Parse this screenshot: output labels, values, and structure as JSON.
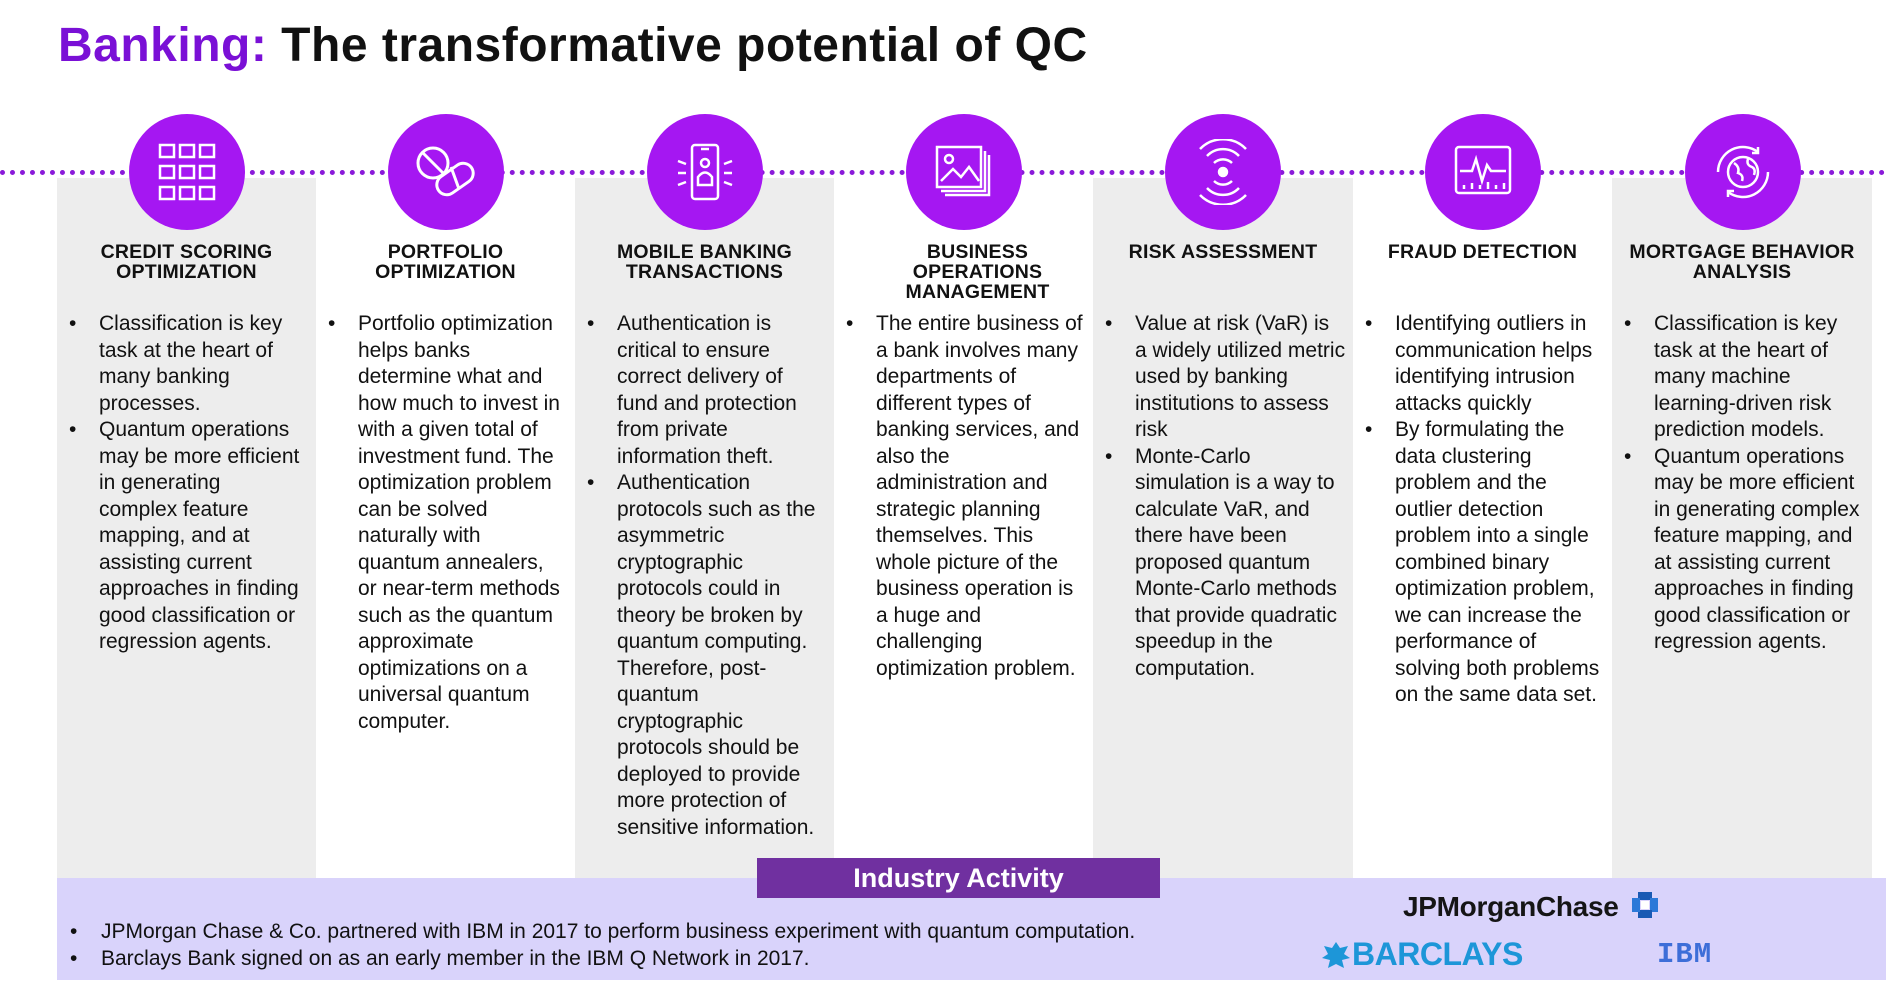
{
  "title": {
    "accent": "Banking:",
    "rest": " The transformative potential of QC"
  },
  "columns": [
    {
      "icon": "grid-icon",
      "heading": "CREDIT SCORING\nOPTIMIZATION",
      "bullets": [
        "Classification is key task at the heart of many banking processes.",
        "Quantum operations may be more efficient in generating complex feature mapping, and at assisting current approaches in finding good classification or regression agents."
      ]
    },
    {
      "icon": "pill-icon",
      "heading": "PORTFOLIO\nOPTIMIZATION",
      "bullets": [
        "Portfolio optimization helps banks determine what and how much to invest in with a given total of investment fund. The optimization problem can be solved naturally with quantum annealers, or near-term methods such as the quantum approximate optimizations on a universal quantum computer."
      ]
    },
    {
      "icon": "mobile-device-icon",
      "heading": "MOBILE BANKING\nTRANSACTIONS",
      "bullets": [
        "Authentication is critical to ensure correct delivery of fund and protection from private information theft.",
        "Authentication protocols such as the asymmetric cryptographic protocols could in theory be broken by quantum computing. Therefore, post-quantum cryptographic protocols should be deployed to provide more protection of sensitive information."
      ]
    },
    {
      "icon": "image-stack-icon",
      "heading": "BUSINESS\nOPERATIONS\nMANAGEMENT",
      "bullets": [
        "The entire business of a bank involves many departments of different types of banking services, and also the administration and strategic planning themselves. This whole picture of the business operation is a huge and challenging optimization problem."
      ]
    },
    {
      "icon": "signal-waves-icon",
      "heading": "RISK ASSESSMENT",
      "bullets": [
        "Value at risk (VaR) is a widely utilized metric used by banking institutions to assess risk",
        "Monte-Carlo simulation is a way to calculate VaR, and there have been proposed quantum Monte-Carlo methods that provide quadratic speedup in the computation."
      ]
    },
    {
      "icon": "monitor-pulse-icon",
      "heading": "FRAUD DETECTION",
      "bullets": [
        "Identifying outliers in communication helps identifying intrusion attacks quickly",
        "By formulating the data clustering problem and the outlier detection problem into a single combined binary optimization problem, we can increase the performance of solving both problems on the same data set."
      ]
    },
    {
      "icon": "globe-cycle-icon",
      "heading": "MORTGAGE BEHAVIOR\nANALYSIS",
      "bullets": [
        "Classification is key task at the heart of many machine learning-driven risk prediction models.",
        "Quantum operations may be more efficient in generating complex feature mapping, and at assisting current approaches in finding good classification or regression agents."
      ]
    }
  ],
  "industry": {
    "title": "Industry Activity",
    "bullets": [
      "JPMorgan Chase & Co. partnered with IBM in 2017 to perform business experiment with quantum computation.",
      "Barclays Bank signed on as an early member in the IBM Q Network in 2017."
    ]
  },
  "logos": {
    "jpm": "JPMorganChase",
    "barclays": "BARCLAYS",
    "ibm": "IBM"
  },
  "colors": {
    "accent": "#7a10d6",
    "circle": "#a517f2",
    "banner": "#7030a0",
    "band": "#d9d3fb",
    "column_gray": "#ededed"
  }
}
